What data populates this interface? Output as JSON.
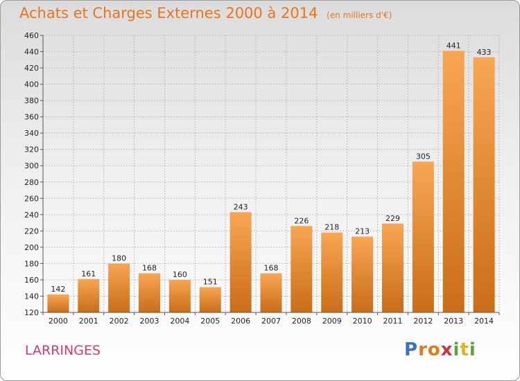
{
  "chart_data": {
    "type": "bar",
    "title": "Achats et Charges Externes 2000 à 2014",
    "subtitle": "(en milliers d'€)",
    "categories": [
      "2000",
      "2001",
      "2002",
      "2003",
      "2004",
      "2005",
      "2006",
      "2007",
      "2008",
      "2009",
      "2010",
      "2011",
      "2012",
      "2013",
      "2014"
    ],
    "values": [
      142,
      161,
      180,
      168,
      160,
      151,
      243,
      168,
      226,
      218,
      213,
      229,
      305,
      441,
      433
    ],
    "ylim": [
      120,
      460
    ],
    "yticks": [
      120,
      140,
      160,
      180,
      200,
      220,
      240,
      260,
      280,
      300,
      320,
      340,
      360,
      380,
      400,
      420,
      440,
      460
    ],
    "grid": true,
    "legend": "none",
    "bar_color_top": "#f8a652",
    "bar_color_bottom": "#c96d19"
  },
  "footer": {
    "place": "LARRINGES",
    "logo_letters": [
      "P",
      "r",
      "o",
      "x",
      "i",
      "t",
      "i"
    ],
    "logo_colors": [
      "#3b6fc1",
      "#e37a1b",
      "#e37a1b",
      "#d7303b",
      "#5aa335",
      "#e3b21b",
      "#5aa335"
    ]
  }
}
